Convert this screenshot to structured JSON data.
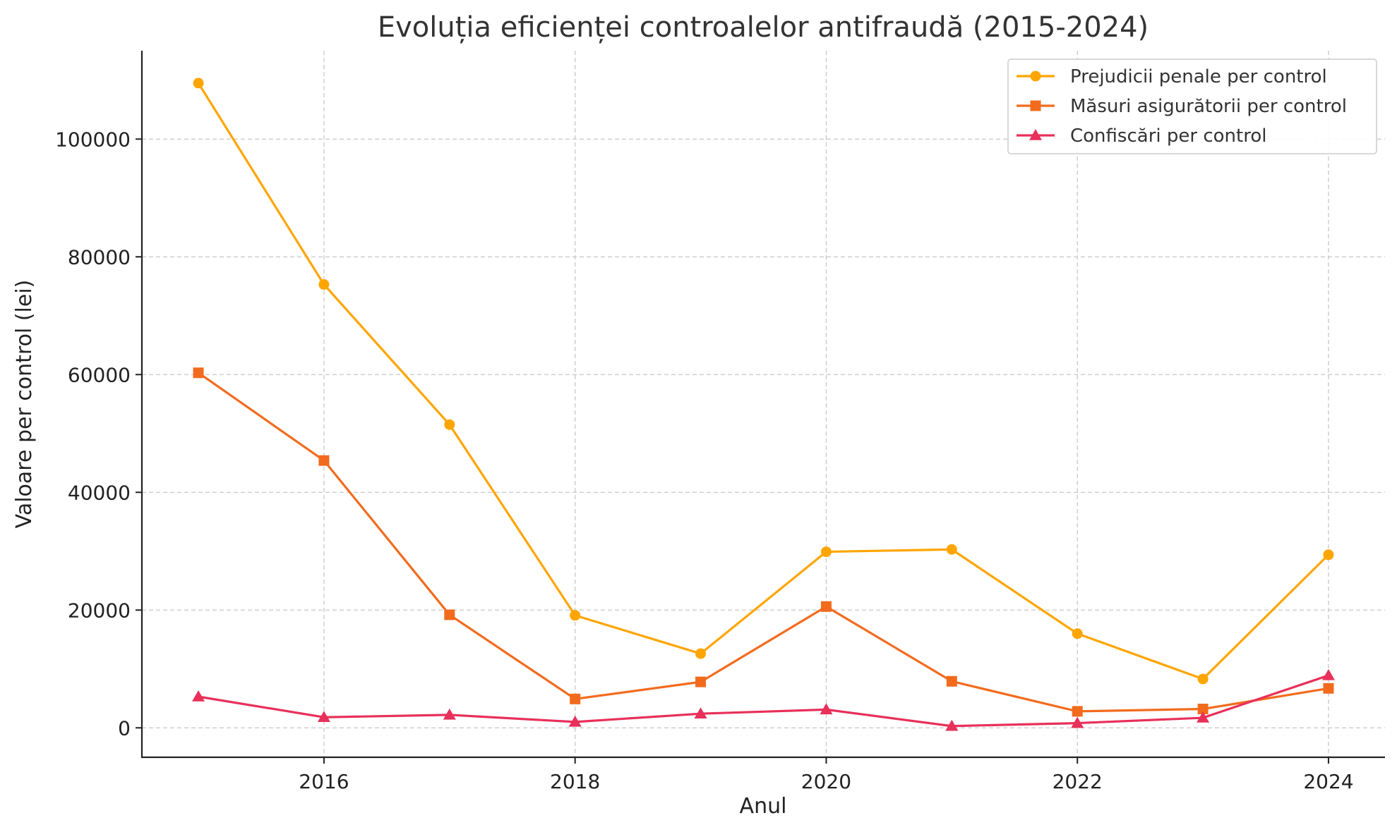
{
  "chart_data": {
    "type": "line",
    "title": "Evoluția eficienței controalelor antifraudă (2015-2024)",
    "xlabel": "Anul",
    "ylabel": "Valoare per control (lei)",
    "x": [
      2015,
      2016,
      2017,
      2018,
      2019,
      2020,
      2021,
      2022,
      2023,
      2024
    ],
    "xlim": [
      2014.55,
      2024.45
    ],
    "ylim": [
      -5000,
      115000
    ],
    "xticks": [
      2016,
      2018,
      2020,
      2022,
      2024
    ],
    "yticks": [
      0,
      20000,
      40000,
      60000,
      80000,
      100000
    ],
    "xtick_labels": [
      "2016",
      "2018",
      "2020",
      "2022",
      "2024"
    ],
    "ytick_labels": [
      "0",
      "20000",
      "40000",
      "60000",
      "80000",
      "100000"
    ],
    "grid": true,
    "legend_position": "top-right",
    "series": [
      {
        "name": "Prejudicii penale per control",
        "color": "#FFA500",
        "marker": "circle",
        "values": [
          109500,
          75300,
          51500,
          19100,
          12600,
          29900,
          30300,
          16000,
          8300,
          29400
        ]
      },
      {
        "name": "Măsuri asigurătorii per control",
        "color": "#F26B1D",
        "marker": "square",
        "values": [
          60300,
          45400,
          19200,
          4900,
          7800,
          20600,
          7900,
          2800,
          3200,
          6700
        ]
      },
      {
        "name": "Confiscări per control",
        "color": "#E8305A",
        "marker": "triangle",
        "values": [
          5300,
          1800,
          2200,
          1000,
          2400,
          3100,
          300,
          800,
          1700,
          8900
        ]
      }
    ]
  }
}
